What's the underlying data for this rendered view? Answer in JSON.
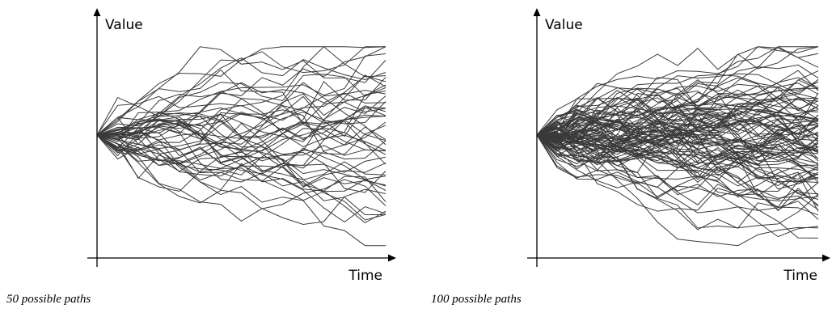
{
  "chart_data": [
    {
      "type": "line",
      "title": "",
      "xlabel": "Time",
      "ylabel": "Value",
      "caption": "50 possible paths",
      "path_count": 50,
      "steps": 14,
      "grid": false,
      "legend": "none",
      "start_value": 0,
      "ylim": [
        -8,
        6
      ],
      "seed": 7
    },
    {
      "type": "line",
      "title": "",
      "xlabel": "Time",
      "ylabel": "Value",
      "caption": "100 possible paths",
      "path_count": 100,
      "steps": 14,
      "grid": false,
      "legend": "none",
      "start_value": 0,
      "ylim": [
        -8,
        6
      ],
      "seed": 21
    }
  ],
  "colors": {
    "line": "#3a3a3a",
    "axis": "#000000"
  }
}
